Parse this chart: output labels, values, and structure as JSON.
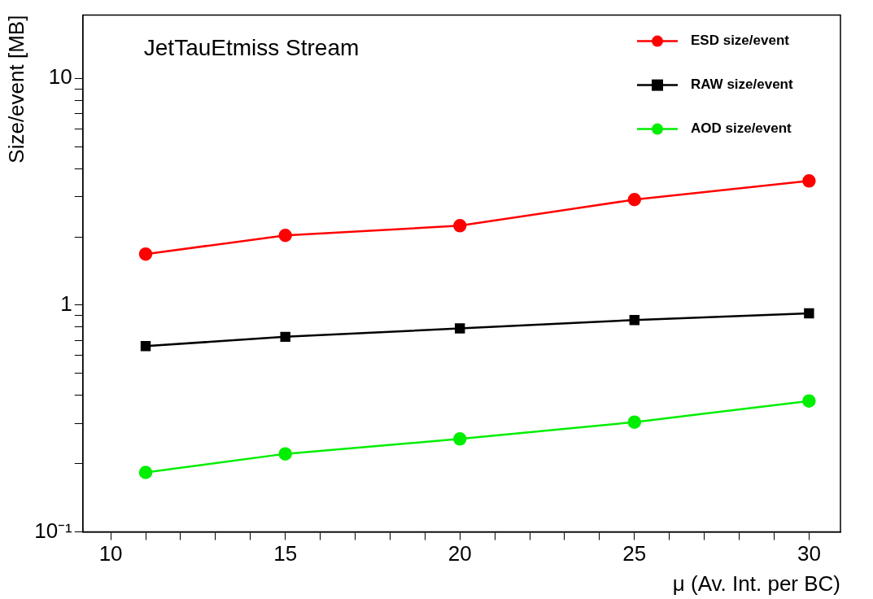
{
  "chart_data": {
    "type": "line",
    "annotations": [
      "JetTauEtmiss Stream"
    ],
    "xlabel": "μ (Av. Int. per BC)",
    "ylabel": "Size/event [MB]",
    "x": [
      11,
      15,
      20,
      25,
      30
    ],
    "series": [
      {
        "name": "ESD size/event",
        "color": "#ff0000",
        "marker": "circle",
        "values": [
          1.68,
          2.03,
          2.24,
          2.92,
          3.53
        ]
      },
      {
        "name": "RAW size/event",
        "color": "#000000",
        "marker": "square",
        "values": [
          0.66,
          0.725,
          0.79,
          0.86,
          0.92
        ]
      },
      {
        "name": "AOD size/event",
        "color": "#00ee00",
        "marker": "circle",
        "values": [
          0.183,
          0.221,
          0.257,
          0.305,
          0.378
        ]
      }
    ],
    "log": "y",
    "xlim": [
      9.2,
      30.9
    ],
    "ylim": [
      0.1,
      19
    ],
    "xticks": [
      10,
      {
        "value": 11,
        "label": null
      },
      {
        "value": 12,
        "label": null
      },
      {
        "value": 13,
        "label": null
      },
      {
        "value": 14,
        "label": null
      },
      15,
      {
        "value": 16,
        "label": null
      },
      {
        "value": 17,
        "label": null
      },
      {
        "value": 18,
        "label": null
      },
      {
        "value": 19,
        "label": null
      },
      20,
      {
        "value": 21,
        "label": null
      },
      {
        "value": 22,
        "label": null
      },
      {
        "value": 23,
        "label": null
      },
      {
        "value": 24,
        "label": null
      },
      25,
      {
        "value": 26,
        "label": null
      },
      {
        "value": 27,
        "label": null
      },
      {
        "value": 28,
        "label": null
      },
      {
        "value": 29,
        "label": null
      },
      30
    ],
    "yticks": [
      {
        "value": 0.1,
        "label": "10⁻¹"
      },
      {
        "value": 0.2,
        "label": null
      },
      {
        "value": 0.3,
        "label": null
      },
      {
        "value": 0.4,
        "label": null
      },
      {
        "value": 0.5,
        "label": null
      },
      {
        "value": 0.6,
        "label": null
      },
      {
        "value": 0.7,
        "label": null
      },
      {
        "value": 0.8,
        "label": null
      },
      {
        "value": 0.9,
        "label": null
      },
      1,
      {
        "value": 2,
        "label": null
      },
      {
        "value": 3,
        "label": null
      },
      {
        "value": 4,
        "label": null
      },
      {
        "value": 5,
        "label": null
      },
      {
        "value": 6,
        "label": null
      },
      {
        "value": 7,
        "label": null
      },
      {
        "value": 8,
        "label": null
      },
      {
        "value": 9,
        "label": null
      },
      10
    ],
    "grid": false,
    "legend": "top right"
  }
}
